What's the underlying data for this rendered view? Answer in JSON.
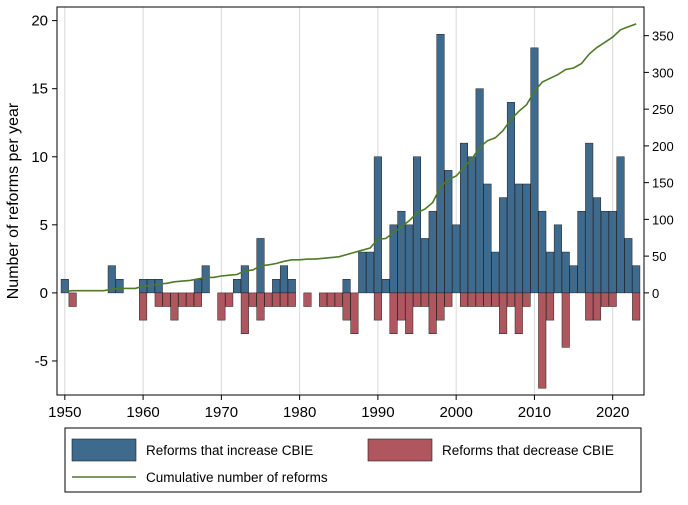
{
  "chart_data": {
    "type": "bar",
    "title": "",
    "xlabel": "",
    "ylabel": "Number of reforms per year",
    "y2label": "",
    "xlim": [
      1949,
      2024
    ],
    "ylim": [
      -7.5,
      21
    ],
    "y2lim": [
      -139,
      389
    ],
    "x_ticks": [
      1950,
      1960,
      1970,
      1980,
      1990,
      2000,
      2010,
      2020
    ],
    "y_ticks": [
      -5,
      0,
      5,
      10,
      15,
      20
    ],
    "y2_ticks": [
      0,
      50,
      100,
      150,
      200,
      250,
      300,
      350
    ],
    "grid": "vertical",
    "legend_position": "bottom",
    "colors": {
      "increase": "#3e6a8e",
      "decrease": "#b0565f",
      "cumulative": "#4f7a28",
      "grid": "#d8d8d8"
    },
    "series": [
      {
        "name": "Reforms that increase CBIE",
        "kind": "bar",
        "points": [
          [
            1950,
            1
          ],
          [
            1956,
            2
          ],
          [
            1957,
            1
          ],
          [
            1960,
            1
          ],
          [
            1961,
            1
          ],
          [
            1962,
            1
          ],
          [
            1967,
            1
          ],
          [
            1968,
            2
          ],
          [
            1972,
            1
          ],
          [
            1973,
            2
          ],
          [
            1975,
            4
          ],
          [
            1977,
            1
          ],
          [
            1978,
            2
          ],
          [
            1979,
            1
          ],
          [
            1986,
            1
          ],
          [
            1988,
            3
          ],
          [
            1989,
            3
          ],
          [
            1990,
            10
          ],
          [
            1991,
            1
          ],
          [
            1992,
            5
          ],
          [
            1993,
            6
          ],
          [
            1994,
            5
          ],
          [
            1995,
            10
          ],
          [
            1996,
            4
          ],
          [
            1997,
            6
          ],
          [
            1998,
            19
          ],
          [
            1999,
            9
          ],
          [
            2000,
            5
          ],
          [
            2001,
            11
          ],
          [
            2002,
            10
          ],
          [
            2003,
            15
          ],
          [
            2004,
            8
          ],
          [
            2005,
            3
          ],
          [
            2006,
            7
          ],
          [
            2007,
            14
          ],
          [
            2008,
            8
          ],
          [
            2009,
            8
          ],
          [
            2010,
            18
          ],
          [
            2011,
            6
          ],
          [
            2012,
            3
          ],
          [
            2013,
            5
          ],
          [
            2014,
            3
          ],
          [
            2015,
            2
          ],
          [
            2016,
            6
          ],
          [
            2017,
            11
          ],
          [
            2018,
            7
          ],
          [
            2019,
            6
          ],
          [
            2020,
            6
          ],
          [
            2021,
            10
          ],
          [
            2022,
            4
          ],
          [
            2023,
            2
          ]
        ]
      },
      {
        "name": "Reforms that decrease CBIE",
        "kind": "bar",
        "points": [
          [
            1951,
            -1
          ],
          [
            1960,
            -2
          ],
          [
            1962,
            -1
          ],
          [
            1963,
            -1
          ],
          [
            1964,
            -2
          ],
          [
            1965,
            -1
          ],
          [
            1966,
            -1
          ],
          [
            1967,
            -1
          ],
          [
            1970,
            -2
          ],
          [
            1971,
            -1
          ],
          [
            1973,
            -3
          ],
          [
            1974,
            -1
          ],
          [
            1975,
            -2
          ],
          [
            1976,
            -1
          ],
          [
            1977,
            -1
          ],
          [
            1978,
            -1
          ],
          [
            1979,
            -1
          ],
          [
            1981,
            -1
          ],
          [
            1983,
            -1
          ],
          [
            1984,
            -1
          ],
          [
            1985,
            -1
          ],
          [
            1986,
            -2
          ],
          [
            1987,
            -3
          ],
          [
            1990,
            -2
          ],
          [
            1992,
            -3
          ],
          [
            1993,
            -2
          ],
          [
            1994,
            -3
          ],
          [
            1995,
            -1
          ],
          [
            1996,
            -1
          ],
          [
            1997,
            -3
          ],
          [
            1998,
            -2
          ],
          [
            1999,
            -1
          ],
          [
            2001,
            -1
          ],
          [
            2002,
            -1
          ],
          [
            2003,
            -1
          ],
          [
            2004,
            -1
          ],
          [
            2005,
            -1
          ],
          [
            2006,
            -3
          ],
          [
            2007,
            -1
          ],
          [
            2008,
            -3
          ],
          [
            2009,
            -1
          ],
          [
            2011,
            -7
          ],
          [
            2012,
            -2
          ],
          [
            2014,
            -4
          ],
          [
            2017,
            -2
          ],
          [
            2018,
            -2
          ],
          [
            2019,
            -1
          ],
          [
            2020,
            -1
          ],
          [
            2023,
            -2
          ]
        ]
      },
      {
        "name": "Cumulative number of reforms",
        "kind": "line",
        "axis": "right",
        "points": [
          [
            1950,
            2
          ],
          [
            1951,
            3
          ],
          [
            1955,
            3
          ],
          [
            1956,
            5
          ],
          [
            1957,
            6
          ],
          [
            1959,
            6
          ],
          [
            1960,
            9
          ],
          [
            1961,
            10
          ],
          [
            1962,
            12
          ],
          [
            1963,
            13
          ],
          [
            1964,
            15
          ],
          [
            1965,
            16
          ],
          [
            1966,
            17
          ],
          [
            1967,
            19
          ],
          [
            1968,
            21
          ],
          [
            1969,
            21
          ],
          [
            1970,
            23
          ],
          [
            1971,
            24
          ],
          [
            1972,
            25
          ],
          [
            1973,
            30
          ],
          [
            1974,
            31
          ],
          [
            1975,
            37
          ],
          [
            1976,
            38
          ],
          [
            1977,
            40
          ],
          [
            1978,
            43
          ],
          [
            1979,
            45
          ],
          [
            1980,
            45
          ],
          [
            1981,
            46
          ],
          [
            1982,
            46
          ],
          [
            1983,
            47
          ],
          [
            1984,
            48
          ],
          [
            1985,
            49
          ],
          [
            1986,
            52
          ],
          [
            1987,
            55
          ],
          [
            1988,
            58
          ],
          [
            1989,
            61
          ],
          [
            1990,
            73
          ],
          [
            1991,
            74
          ],
          [
            1992,
            82
          ],
          [
            1993,
            90
          ],
          [
            1994,
            98
          ],
          [
            1995,
            109
          ],
          [
            1996,
            114
          ],
          [
            1997,
            123
          ],
          [
            1998,
            144
          ],
          [
            1999,
            154
          ],
          [
            2000,
            159
          ],
          [
            2001,
            171
          ],
          [
            2002,
            182
          ],
          [
            2003,
            198
          ],
          [
            2004,
            207
          ],
          [
            2005,
            211
          ],
          [
            2006,
            221
          ],
          [
            2007,
            236
          ],
          [
            2008,
            247
          ],
          [
            2009,
            256
          ],
          [
            2010,
            274
          ],
          [
            2011,
            287
          ],
          [
            2012,
            292
          ],
          [
            2013,
            297
          ],
          [
            2014,
            304
          ],
          [
            2015,
            306
          ],
          [
            2016,
            312
          ],
          [
            2017,
            325
          ],
          [
            2018,
            334
          ],
          [
            2019,
            341
          ],
          [
            2020,
            348
          ],
          [
            2021,
            358
          ],
          [
            2022,
            362
          ],
          [
            2023,
            366
          ]
        ]
      }
    ]
  }
}
